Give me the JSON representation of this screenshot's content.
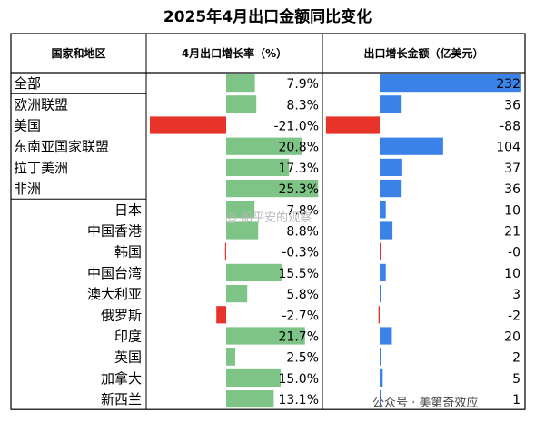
{
  "title": "2025年4月出口金额同比变化",
  "headers": {
    "region": "国家和地区",
    "growth": "4月出口增长率（%）",
    "amount": "出口增长金额（亿美元）"
  },
  "colors": {
    "green": "#7dc486",
    "blue": "#3a82e8",
    "red": "#e8332b",
    "grid": "#000000"
  },
  "watermarks": {
    "center": "@ 船平安的观察",
    "bottom": "公众号 · 美第奇效应"
  },
  "chart_data": {
    "type": "table",
    "rows": [
      {
        "name": "全部",
        "growth": 7.9,
        "growth_label": "7.9%",
        "amount": 232,
        "amount_label": "232",
        "group": 0
      },
      {
        "name": "欧洲联盟",
        "growth": 8.3,
        "growth_label": "8.3%",
        "amount": 36,
        "amount_label": "36",
        "group": 1
      },
      {
        "name": "美国",
        "growth": -21.0,
        "growth_label": "-21.0%",
        "amount": -88,
        "amount_label": "-88",
        "group": 1
      },
      {
        "name": "东南亚国家联盟",
        "growth": 20.8,
        "growth_label": "20.8%",
        "amount": 104,
        "amount_label": "104",
        "group": 1
      },
      {
        "name": "拉丁美洲",
        "growth": 17.3,
        "growth_label": "17.3%",
        "amount": 37,
        "amount_label": "37",
        "group": 1
      },
      {
        "name": "非洲",
        "growth": 25.3,
        "growth_label": "25.3%",
        "amount": 36,
        "amount_label": "36",
        "group": 1
      },
      {
        "name": "日本",
        "growth": 7.8,
        "growth_label": "7.8%",
        "amount": 10,
        "amount_label": "10",
        "group": 2
      },
      {
        "name": "中国香港",
        "growth": 8.8,
        "growth_label": "8.8%",
        "amount": 21,
        "amount_label": "21",
        "group": 2
      },
      {
        "name": "韩国",
        "growth": -0.3,
        "growth_label": "-0.3%",
        "amount": 0,
        "amount_label": "-0",
        "group": 2
      },
      {
        "name": "中国台湾",
        "growth": 15.5,
        "growth_label": "15.5%",
        "amount": 10,
        "amount_label": "10",
        "group": 2
      },
      {
        "name": "澳大利亚",
        "growth": 5.8,
        "growth_label": "5.8%",
        "amount": 3,
        "amount_label": "3",
        "group": 2
      },
      {
        "name": "俄罗斯",
        "growth": -2.7,
        "growth_label": "-2.7%",
        "amount": -2,
        "amount_label": "-2",
        "group": 2
      },
      {
        "name": "印度",
        "growth": 21.7,
        "growth_label": "21.7%",
        "amount": 20,
        "amount_label": "20",
        "group": 2
      },
      {
        "name": "英国",
        "growth": 2.5,
        "growth_label": "2.5%",
        "amount": 2,
        "amount_label": "2",
        "group": 2
      },
      {
        "name": "加拿大",
        "growth": 15.0,
        "growth_label": "15.0%",
        "amount": 5,
        "amount_label": "5",
        "group": 2
      },
      {
        "name": "新西兰",
        "growth": 13.1,
        "growth_label": "13.1%",
        "amount": 1,
        "amount_label": "1",
        "group": 2
      }
    ]
  }
}
